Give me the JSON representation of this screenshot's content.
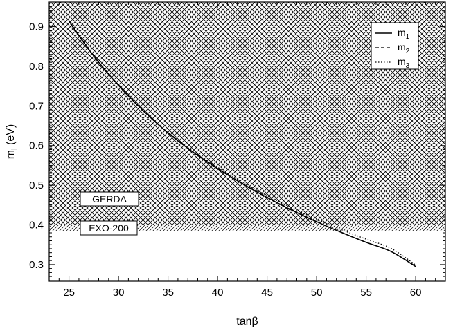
{
  "chart_data": {
    "type": "line",
    "xlabel": "tanβ",
    "ylabel": {
      "main": "m",
      "sub": "i",
      "unit": " (eV)"
    },
    "xlim": [
      23,
      63
    ],
    "ylim": [
      0.258,
      0.962
    ],
    "x_ticks": [
      25,
      30,
      35,
      40,
      45,
      50,
      55,
      60
    ],
    "x_tick_labels": [
      "25",
      "30",
      "35",
      "40",
      "45",
      "50",
      "55",
      "60"
    ],
    "y_ticks": [
      0.3,
      0.4,
      0.5,
      0.6,
      0.7,
      0.8,
      0.9
    ],
    "y_tick_labels": [
      "0.3",
      "0.4",
      "0.5",
      "0.6",
      "0.7",
      "0.8",
      "0.9"
    ],
    "grid": false,
    "legend_position": "top-right",
    "series": [
      {
        "name": {
          "main": "m",
          "sub": "1"
        },
        "style": "solid",
        "x": [
          25,
          27.5,
          30,
          32.5,
          35,
          37.5,
          40,
          42.5,
          45,
          47.5,
          50,
          52.5,
          55,
          57.5,
          60
        ],
        "y": [
          0.914,
          0.826,
          0.752,
          0.688,
          0.632,
          0.584,
          0.542,
          0.504,
          0.469,
          0.437,
          0.408,
          0.381,
          0.356,
          0.333,
          0.295
        ]
      },
      {
        "name": {
          "main": "m",
          "sub": "2"
        },
        "style": "dashed",
        "x": [
          25,
          27.5,
          30,
          32.5,
          35,
          37.5,
          40,
          42.5,
          45,
          47.5,
          50,
          52.5,
          55,
          57.5,
          60
        ],
        "y": [
          0.914,
          0.826,
          0.752,
          0.688,
          0.632,
          0.584,
          0.542,
          0.504,
          0.469,
          0.437,
          0.408,
          0.381,
          0.356,
          0.333,
          0.296
        ]
      },
      {
        "name": {
          "main": "m",
          "sub": "3"
        },
        "style": "dotted",
        "x": [
          25,
          27.5,
          30,
          32.5,
          35,
          37.5,
          40,
          42.5,
          45,
          47.5,
          50,
          52.5,
          55,
          57.5,
          60
        ],
        "y": [
          0.912,
          0.825,
          0.751,
          0.688,
          0.633,
          0.586,
          0.545,
          0.508,
          0.474,
          0.443,
          0.414,
          0.388,
          0.364,
          0.341,
          0.299
        ]
      }
    ],
    "excluded_regions": [
      {
        "label": "GERDA",
        "y_from": 0.4,
        "y_to": 0.962,
        "pattern": "crosshatch"
      },
      {
        "label": "EXO-200",
        "y_from": 0.385,
        "y_to": 0.4,
        "pattern": "diagonal"
      }
    ],
    "colors": {
      "line": "#000000",
      "hatch": "#000000",
      "background": "#ffffff"
    }
  }
}
